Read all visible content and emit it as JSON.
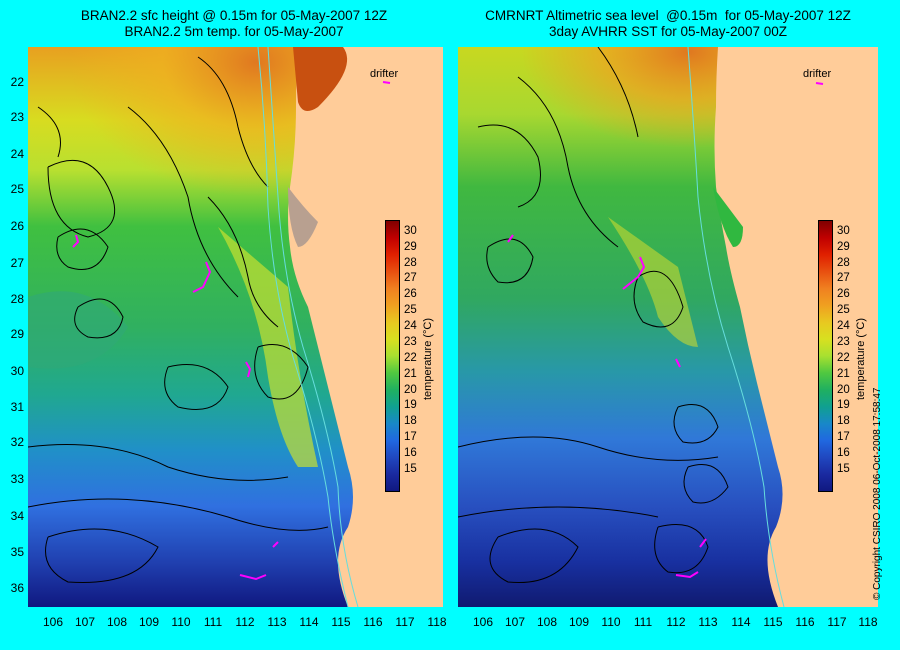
{
  "left_panel": {
    "title_line1": "BRAN2.2 sfc height @ 0.15m for 05-May-2007 12Z",
    "title_line2": "BRAN2.2 5m temp. for 05-May-2007",
    "drifter_label": "drifter"
  },
  "right_panel": {
    "title_line1": "CMRNRT Altimetric sea level  @0.15m  for 05-May-2007 12Z",
    "title_line2": "3day AVHRR SST for 05-May-2007 00Z",
    "drifter_label": "drifter"
  },
  "latitude_labels": [
    "22",
    "23",
    "24",
    "25",
    "26",
    "27",
    "28",
    "29",
    "30",
    "31",
    "32",
    "33",
    "34",
    "35",
    "36"
  ],
  "longitude_labels": [
    "106",
    "107",
    "108",
    "109",
    "110",
    "111",
    "112",
    "113",
    "114",
    "115",
    "116",
    "117",
    "118"
  ],
  "colorbar": {
    "title": "temperature (°C)",
    "ticks": [
      "30",
      "29",
      "28",
      "27",
      "26",
      "25",
      "24",
      "23",
      "22",
      "21",
      "20",
      "19",
      "18",
      "17",
      "16",
      "15"
    ],
    "min": 14,
    "max": 30
  },
  "copyright": "© Copyright CSIRO 2008     06-Oct-2008 17:58:47",
  "colors": {
    "background": "#00ffff",
    "land": "#ffcc99",
    "drifter": "#ff00ff"
  }
}
